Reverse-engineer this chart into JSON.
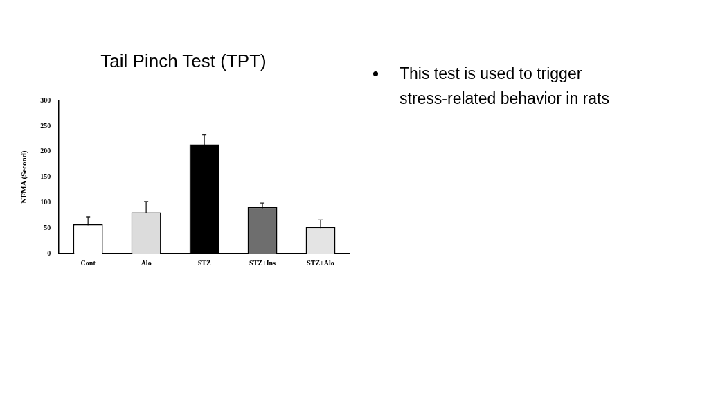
{
  "chart_data": {
    "type": "bar",
    "title": "Tail Pinch Test (TPT)",
    "ylabel": "NFMA (Second)",
    "categories": [
      "Cont",
      "Alo",
      "STZ",
      "STZ+Ins",
      "STZ+Alo"
    ],
    "values": [
      57,
      81,
      214,
      91,
      52
    ],
    "errors": [
      15,
      21,
      19,
      8,
      14
    ],
    "colors": [
      "#ffffff",
      "#dcdcdc",
      "#000000",
      "#6e6e6e",
      "#e4e4e4"
    ],
    "ylim": [
      0,
      300
    ],
    "yticks": [
      0,
      50,
      100,
      150,
      200,
      250,
      300
    ],
    "grid": false,
    "legend": false,
    "annotations": [
      "This test is used to trigger stress-related behavior in rats"
    ]
  }
}
